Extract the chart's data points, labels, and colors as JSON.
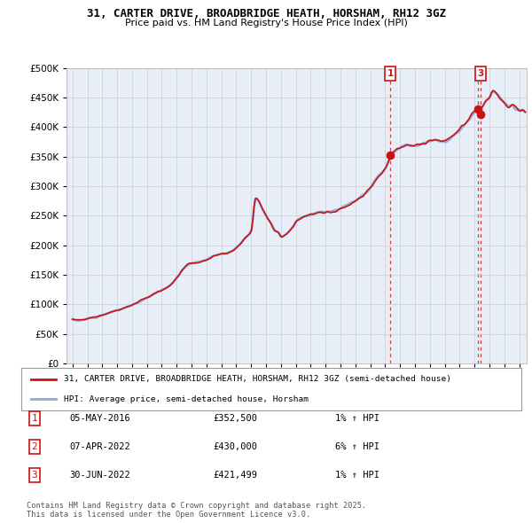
{
  "title": "31, CARTER DRIVE, BROADBRIDGE HEATH, HORSHAM, RH12 3GZ",
  "subtitle": "Price paid vs. HM Land Registry's House Price Index (HPI)",
  "ylim": [
    0,
    500000
  ],
  "yticks": [
    0,
    50000,
    100000,
    150000,
    200000,
    250000,
    300000,
    350000,
    400000,
    450000,
    500000
  ],
  "hpi_color": "#88aadd",
  "price_color": "#cc1111",
  "chart_bg": "#e8eef8",
  "legend_price_label": "31, CARTER DRIVE, BROADBRIDGE HEATH, HORSHAM, RH12 3GZ (semi-detached house)",
  "legend_hpi_label": "HPI: Average price, semi-detached house, Horsham",
  "transactions": [
    {
      "num": 1,
      "date": "05-MAY-2016",
      "price": 352500,
      "pct": "1%",
      "dir": "↑",
      "show_label": true
    },
    {
      "num": 2,
      "date": "07-APR-2022",
      "price": 430000,
      "pct": "6%",
      "dir": "↑",
      "show_label": false
    },
    {
      "num": 3,
      "date": "30-JUN-2022",
      "price": 421499,
      "pct": "1%",
      "dir": "↑",
      "show_label": true
    }
  ],
  "footer": "Contains HM Land Registry data © Crown copyright and database right 2025.\nThis data is licensed under the Open Government Licence v3.0.",
  "background_color": "#ffffff",
  "grid_color": "#cccccc",
  "hpi_curve": [
    [
      1995.0,
      75000
    ],
    [
      1995.5,
      73000
    ],
    [
      1996.0,
      76000
    ],
    [
      1996.5,
      78000
    ],
    [
      1997.0,
      82000
    ],
    [
      1997.5,
      86000
    ],
    [
      1998.0,
      90000
    ],
    [
      1998.5,
      94000
    ],
    [
      1999.0,
      99000
    ],
    [
      1999.5,
      105000
    ],
    [
      2000.0,
      112000
    ],
    [
      2000.5,
      118000
    ],
    [
      2001.0,
      124000
    ],
    [
      2001.5,
      131000
    ],
    [
      2002.0,
      145000
    ],
    [
      2002.5,
      162000
    ],
    [
      2003.0,
      170000
    ],
    [
      2003.5,
      172000
    ],
    [
      2004.0,
      176000
    ],
    [
      2004.5,
      182000
    ],
    [
      2005.0,
      185000
    ],
    [
      2005.5,
      188000
    ],
    [
      2006.0,
      196000
    ],
    [
      2006.5,
      210000
    ],
    [
      2007.0,
      225000
    ],
    [
      2007.3,
      280000
    ],
    [
      2007.5,
      275000
    ],
    [
      2007.8,
      260000
    ],
    [
      2008.0,
      250000
    ],
    [
      2008.3,
      238000
    ],
    [
      2008.6,
      225000
    ],
    [
      2008.9,
      220000
    ],
    [
      2009.0,
      215000
    ],
    [
      2009.3,
      218000
    ],
    [
      2009.6,
      225000
    ],
    [
      2009.9,
      235000
    ],
    [
      2010.0,
      240000
    ],
    [
      2010.5,
      248000
    ],
    [
      2011.0,
      252000
    ],
    [
      2011.5,
      255000
    ],
    [
      2012.0,
      255000
    ],
    [
      2012.5,
      258000
    ],
    [
      2013.0,
      262000
    ],
    [
      2013.5,
      268000
    ],
    [
      2014.0,
      275000
    ],
    [
      2014.5,
      285000
    ],
    [
      2015.0,
      298000
    ],
    [
      2015.5,
      315000
    ],
    [
      2016.0,
      330000
    ],
    [
      2016.4,
      352000
    ],
    [
      2016.5,
      355000
    ],
    [
      2017.0,
      365000
    ],
    [
      2017.5,
      370000
    ],
    [
      2018.0,
      368000
    ],
    [
      2018.5,
      372000
    ],
    [
      2019.0,
      375000
    ],
    [
      2019.5,
      378000
    ],
    [
      2020.0,
      375000
    ],
    [
      2020.5,
      385000
    ],
    [
      2021.0,
      395000
    ],
    [
      2021.5,
      410000
    ],
    [
      2022.0,
      425000
    ],
    [
      2022.25,
      430000
    ],
    [
      2022.5,
      435000
    ],
    [
      2022.75,
      445000
    ],
    [
      2023.0,
      450000
    ],
    [
      2023.25,
      460000
    ],
    [
      2023.5,
      455000
    ],
    [
      2023.75,
      448000
    ],
    [
      2024.0,
      440000
    ],
    [
      2024.25,
      435000
    ],
    [
      2024.5,
      438000
    ],
    [
      2024.75,
      432000
    ],
    [
      2025.0,
      430000
    ],
    [
      2025.25,
      428000
    ]
  ]
}
